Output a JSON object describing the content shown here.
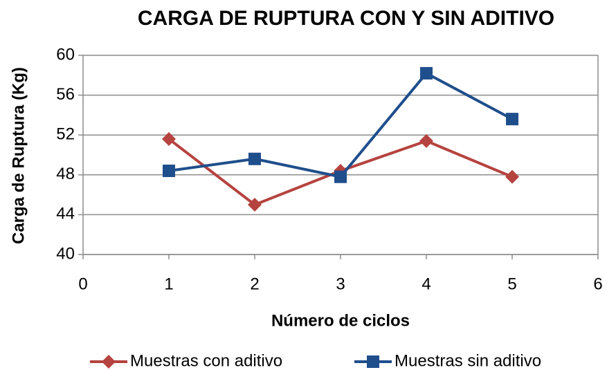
{
  "chart_data": {
    "type": "line",
    "title": "CARGA DE RUPTURA CON Y SIN ADITIVO",
    "xlabel": "Número de ciclos",
    "ylabel": "Carga de Ruptura (Kg)",
    "x": [
      1,
      2,
      3,
      4,
      5
    ],
    "series": [
      {
        "name": "Muestras con aditivo",
        "color": "#b5433f",
        "marker": "diamond",
        "values": [
          51.6,
          45.0,
          48.4,
          51.4,
          47.8
        ]
      },
      {
        "name": "Muestras sin aditivo",
        "color": "#1f4e8c",
        "marker": "square",
        "values": [
          48.4,
          49.6,
          47.8,
          58.2,
          53.6
        ]
      }
    ],
    "xlim": [
      0,
      6
    ],
    "xticks": [
      0,
      1,
      2,
      3,
      4,
      5,
      6
    ],
    "ylim": [
      40,
      60
    ],
    "yticks": [
      40,
      44,
      48,
      52,
      56,
      60
    ],
    "grid": true,
    "legend": "bottom"
  }
}
